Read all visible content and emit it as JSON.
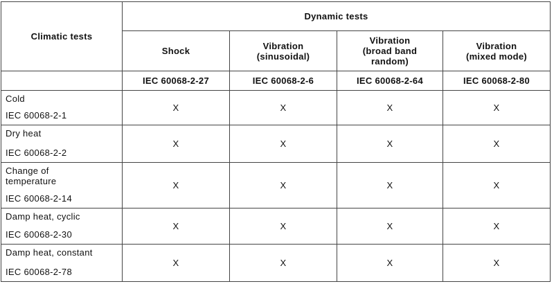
{
  "header": {
    "climatic_title": "Climatic tests",
    "dynamic_title": "Dynamic tests",
    "columns": [
      {
        "name": [
          "Shock"
        ],
        "standard": "IEC 60068-2-27"
      },
      {
        "name": [
          "Vibration",
          "(sinusoidal)"
        ],
        "standard": "IEC 60068-2-6"
      },
      {
        "name": [
          "Vibration",
          "(broad band",
          "random)"
        ],
        "standard": "IEC 60068-2-64"
      },
      {
        "name": [
          "Vibration",
          "(mixed mode)"
        ],
        "standard": "IEC 60068-2-80"
      }
    ]
  },
  "rows": [
    {
      "name": [
        "Cold"
      ],
      "standard": "IEC 60068-2-1",
      "cells": [
        "X",
        "X",
        "X",
        "X"
      ]
    },
    {
      "name": [
        "Dry heat"
      ],
      "standard": "IEC 60068-2-2",
      "cells": [
        "X",
        "X",
        "X",
        "X"
      ]
    },
    {
      "name": [
        "Change of",
        "temperature"
      ],
      "standard": "IEC 60068-2-14",
      "cells": [
        "X",
        "X",
        "X",
        "X"
      ]
    },
    {
      "name": [
        "Damp heat, cyclic"
      ],
      "standard": "IEC 60068-2-30",
      "cells": [
        "X",
        "X",
        "X",
        "X"
      ]
    },
    {
      "name": [
        "Damp heat, constant"
      ],
      "standard": "IEC 60068-2-78",
      "cells": [
        "X",
        "X",
        "X",
        "X"
      ]
    }
  ]
}
